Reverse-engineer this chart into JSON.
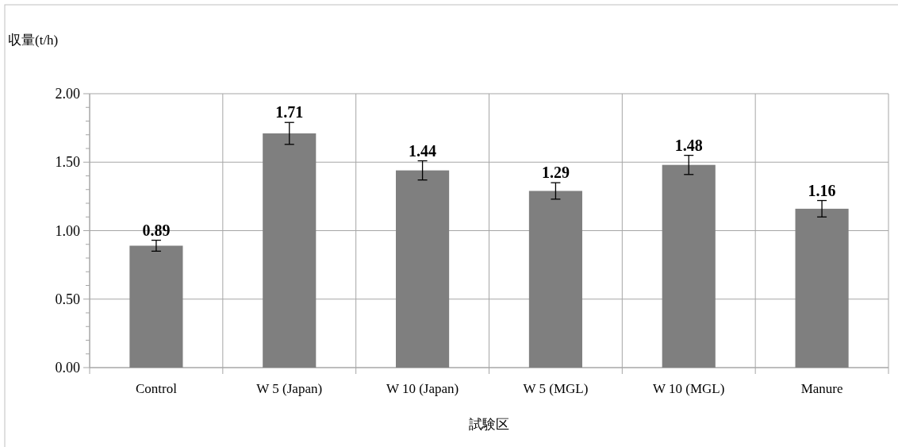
{
  "chart_data": {
    "type": "bar",
    "ylabel": "収量(t/h)",
    "xlabel": "試験区",
    "categories": [
      "Control",
      "W 5 (Japan)",
      "W 10 (Japan)",
      "W 5 (MGL)",
      "W 10 (MGL)",
      "Manure"
    ],
    "values": [
      0.89,
      1.71,
      1.44,
      1.29,
      1.48,
      1.16
    ],
    "errors": [
      0.04,
      0.08,
      0.07,
      0.06,
      0.07,
      0.06
    ],
    "color": "#7f7f7f",
    "data_labels": true,
    "ylim": [
      0,
      2
    ],
    "yticks": [
      {
        "value": 0,
        "label": "0.00"
      },
      {
        "value": 0.1,
        "label": null
      },
      {
        "value": 0.2,
        "label": null
      },
      {
        "value": 0.3,
        "label": null
      },
      {
        "value": 0.4,
        "label": null
      },
      {
        "value": 0.5,
        "label": "0.50"
      },
      {
        "value": 0.6,
        "label": null
      },
      {
        "value": 0.7,
        "label": null
      },
      {
        "value": 0.8,
        "label": null
      },
      {
        "value": 0.9,
        "label": null
      },
      {
        "value": 1,
        "label": "1.00"
      },
      {
        "value": 1.1,
        "label": null
      },
      {
        "value": 1.2,
        "label": null
      },
      {
        "value": 1.3,
        "label": null
      },
      {
        "value": 1.4,
        "label": null
      },
      {
        "value": 1.5,
        "label": "1.50"
      },
      {
        "value": 1.6,
        "label": null
      },
      {
        "value": 1.7,
        "label": null
      },
      {
        "value": 1.8,
        "label": null
      },
      {
        "value": 1.9,
        "label": null
      },
      {
        "value": 2,
        "label": "2.00"
      }
    ],
    "grid": true
  }
}
